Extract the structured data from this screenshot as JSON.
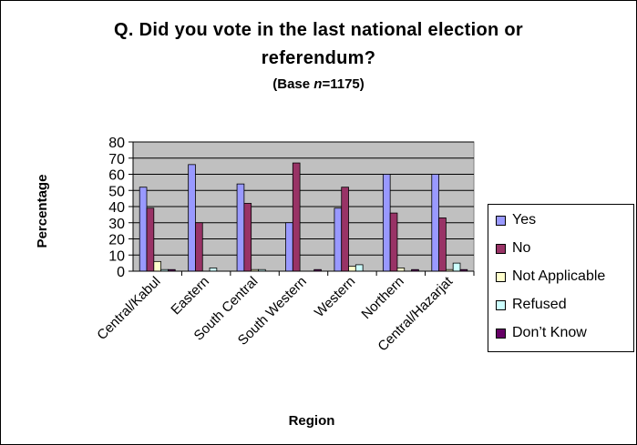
{
  "chart_data": {
    "type": "bar",
    "title_line1": "Q. Did you vote in the last national election or",
    "title_line2": "referendum?",
    "subtitle_prefix": "(Base ",
    "subtitle_n": "n",
    "subtitle_suffix": "=1175)",
    "xlabel": "Region",
    "ylabel": "Percentage",
    "ylim": [
      0,
      80
    ],
    "yticks": [
      0,
      10,
      20,
      30,
      40,
      50,
      60,
      70,
      80
    ],
    "grid": true,
    "legend_position": "right",
    "categories": [
      "Central/Kabul",
      "Eastern",
      "South Central",
      "South Western",
      "Western",
      "Northern",
      "Central/Hazarjat"
    ],
    "series": [
      {
        "name": "Yes",
        "color": "#9999ff",
        "values": [
          52,
          66,
          54,
          30,
          39,
          60,
          60
        ]
      },
      {
        "name": "No",
        "color": "#993366",
        "values": [
          39,
          30,
          42,
          67,
          52,
          36,
          33
        ]
      },
      {
        "name": "Not Applicable",
        "color": "#ffffcc",
        "values": [
          6,
          0,
          1,
          0,
          3,
          2,
          1
        ]
      },
      {
        "name": "Refused",
        "color": "#ccffff",
        "values": [
          1,
          2,
          1,
          0,
          4,
          0,
          5
        ]
      },
      {
        "name": "Don’t Know",
        "color": "#660066",
        "values": [
          1,
          0,
          0,
          1,
          0,
          1,
          1
        ]
      }
    ],
    "plot_background": "#c0c0c0"
  }
}
